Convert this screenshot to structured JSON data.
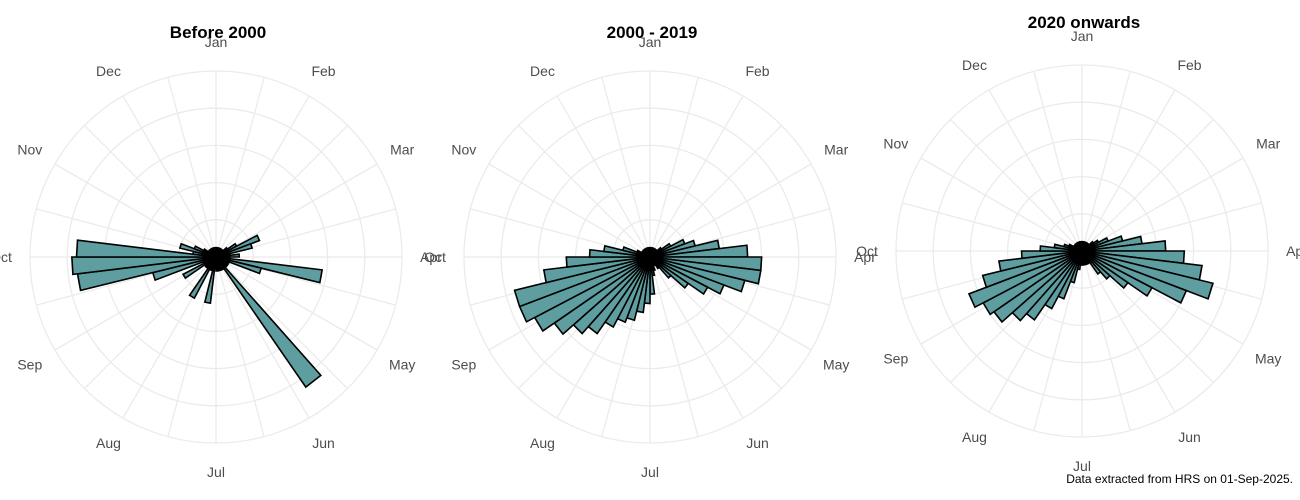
{
  "colors": {
    "bar_fill": "#5f9ea0",
    "bar_stroke": "#000000",
    "grid": "#ebebeb",
    "label": "#4d4d4d"
  },
  "caption": "Data extracted from HRS on 01-Sep-2025.",
  "chart_data": [
    {
      "type": "bar",
      "coord": "polar",
      "title": "Before 2000",
      "months": [
        "Jan",
        "Feb",
        "Mar",
        "Apr",
        "May",
        "Jun",
        "Jul",
        "Aug",
        "Sep",
        "Oct",
        "Nov",
        "Dec"
      ],
      "angle_unit": "week of year",
      "x": [
        1,
        2,
        3,
        4,
        5,
        6,
        7,
        8,
        9,
        10,
        11,
        12,
        13,
        14,
        15,
        16,
        17,
        18,
        19,
        20,
        21,
        22,
        23,
        24,
        25,
        26,
        27,
        28,
        29,
        30,
        31,
        32,
        33,
        34,
        35,
        36,
        37,
        38,
        39,
        40,
        41,
        42,
        43,
        44,
        45,
        46,
        47,
        48,
        49,
        50,
        51,
        52
      ],
      "values": [
        0.2,
        0.2,
        0.2,
        0.2,
        0.2,
        0.2,
        0.2,
        0.3,
        0.5,
        1.0,
        0.8,
        0.3,
        0.5,
        0.3,
        2.3,
        1.0,
        0.3,
        0.3,
        0.3,
        0.3,
        3.4,
        0.3,
        0.3,
        0.3,
        0.3,
        0.3,
        0.2,
        1.0,
        0.3,
        0.3,
        1.0,
        0.3,
        0.3,
        0.3,
        0.8,
        0.3,
        1.4,
        3.0,
        3.1,
        3.0,
        0.5,
        0.8,
        0.5,
        0.3,
        0.2,
        0.2,
        0.2,
        0.2,
        0.2,
        0.2,
        0.2,
        0.2
      ],
      "rlim": [
        0,
        4
      ]
    },
    {
      "type": "bar",
      "coord": "polar",
      "title": "2000 - 2019",
      "months": [
        "Jan",
        "Feb",
        "Mar",
        "Apr",
        "May",
        "Jun",
        "Jul",
        "Aug",
        "Sep",
        "Oct",
        "Nov",
        "Dec"
      ],
      "angle_unit": "week of year",
      "x": [
        1,
        2,
        3,
        4,
        5,
        6,
        7,
        8,
        9,
        10,
        11,
        12,
        13,
        14,
        15,
        16,
        17,
        18,
        19,
        20,
        21,
        22,
        23,
        24,
        25,
        26,
        27,
        28,
        29,
        30,
        31,
        32,
        33,
        34,
        35,
        36,
        37,
        38,
        39,
        40,
        41,
        42,
        43,
        44,
        45,
        46,
        47,
        48,
        49,
        50,
        51,
        52
      ],
      "values": [
        0.2,
        0.2,
        0.2,
        0.2,
        0.2,
        0.2,
        0.2,
        0.3,
        0.5,
        0.8,
        1.0,
        1.5,
        2.1,
        2.4,
        2.4,
        2.1,
        1.7,
        1.4,
        1.0,
        0.6,
        0.3,
        0.2,
        0.2,
        0.3,
        0.4,
        0.8,
        1.0,
        1.2,
        1.4,
        1.5,
        1.7,
        2.0,
        2.2,
        2.5,
        2.8,
        3.0,
        3.0,
        2.3,
        1.8,
        1.3,
        1.0,
        0.6,
        0.3,
        0.2,
        0.2,
        0.2,
        0.2,
        0.2,
        0.2,
        0.2,
        0.2,
        0.2
      ],
      "rlim": [
        0,
        4
      ]
    },
    {
      "type": "bar",
      "coord": "polar",
      "title": "2020 onwards",
      "months": [
        "Jan",
        "Feb",
        "Mar",
        "Apr",
        "May",
        "Jun",
        "Jul",
        "Aug",
        "Sep",
        "Oct",
        "Nov",
        "Dec"
      ],
      "angle_unit": "week of year",
      "x": [
        1,
        2,
        3,
        4,
        5,
        6,
        7,
        8,
        9,
        10,
        11,
        12,
        13,
        14,
        15,
        16,
        17,
        18,
        19,
        20,
        21,
        22,
        23,
        24,
        25,
        26,
        27,
        28,
        29,
        30,
        31,
        32,
        33,
        34,
        35,
        36,
        37,
        38,
        39,
        40,
        41,
        42,
        43,
        44,
        45,
        46,
        47,
        48,
        49,
        50,
        51,
        52
      ],
      "values": [
        0.2,
        0.2,
        0.2,
        0.2,
        0.2,
        0.2,
        0.2,
        0.3,
        0.4,
        0.6,
        0.9,
        1.3,
        1.8,
        2.2,
        2.6,
        2.9,
        2.4,
        1.7,
        1.2,
        0.8,
        0.6,
        0.3,
        0.3,
        0.3,
        0.3,
        0.3,
        0.3,
        0.4,
        0.7,
        1.1,
        1.4,
        1.8,
        2.0,
        2.3,
        2.4,
        2.6,
        2.2,
        1.8,
        1.3,
        0.9,
        0.6,
        0.4,
        0.3,
        0.2,
        0.2,
        0.2,
        0.2,
        0.2,
        0.2,
        0.2,
        0.2,
        0.2
      ],
      "rlim": [
        0,
        4
      ]
    }
  ]
}
